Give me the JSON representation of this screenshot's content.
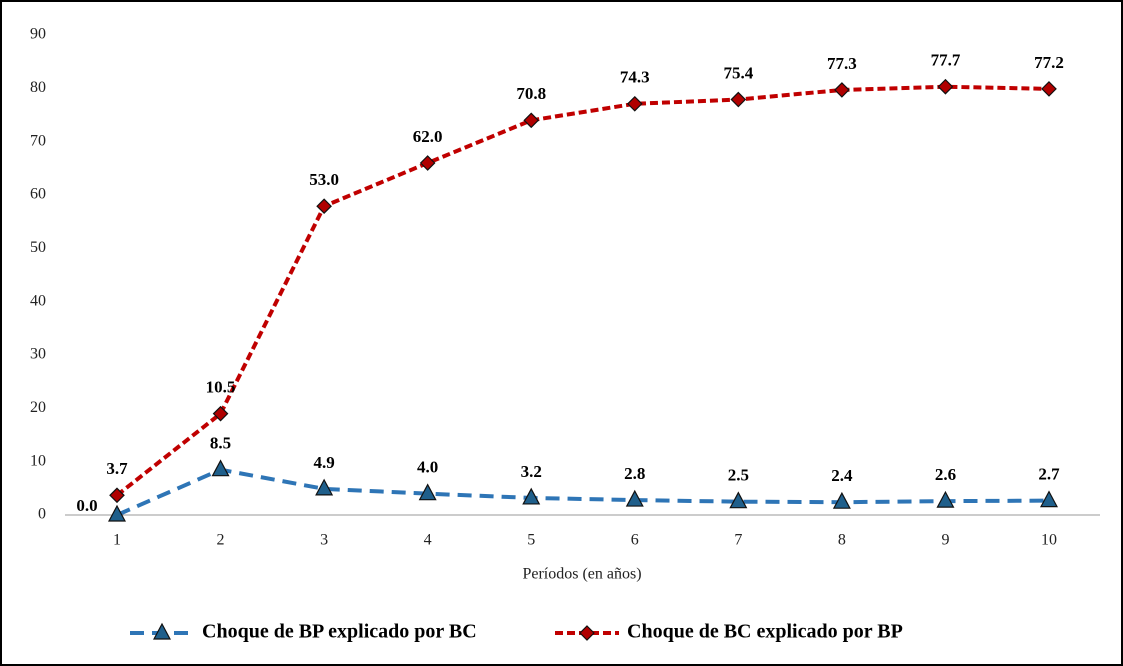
{
  "chart_data": {
    "type": "line",
    "stacked": true,
    "x_label": "Períodos (en años)",
    "categories": [
      "1",
      "2",
      "3",
      "4",
      "5",
      "6",
      "7",
      "8",
      "9",
      "10"
    ],
    "series": [
      {
        "name": "Choque de BP explicado por BC",
        "color": "#2e75b6",
        "marker": "triangle",
        "marker_color": "#1f5f8b",
        "values": [
          0,
          8.5,
          4.9,
          4,
          3.2,
          2.8,
          2.5,
          2.4,
          2.6,
          2.7
        ],
        "value_labels": [
          "0.0",
          "8.5",
          "4.9",
          "4.0",
          "3.2",
          "2.8",
          "2.5",
          "2.4",
          "2.6",
          "2.7"
        ]
      },
      {
        "name": "Choque de BC explicado por BP",
        "color": "#c00000",
        "marker": "diamond",
        "marker_color": "#b00000",
        "values": [
          3.7,
          10.5,
          53,
          62,
          70.8,
          74.3,
          75.4,
          77.3,
          77.7,
          77.2
        ],
        "value_labels": [
          "3.7",
          "10.5",
          "53.0",
          "62.0",
          "70.8",
          "74.3",
          "75.4",
          "77.3",
          "77.7",
          "77.2"
        ]
      }
    ],
    "ylim": [
      0,
      90
    ],
    "yticks": [
      0,
      10,
      20,
      30,
      40,
      50,
      60,
      70,
      80,
      90
    ],
    "grid": false,
    "legend": "bottom"
  }
}
